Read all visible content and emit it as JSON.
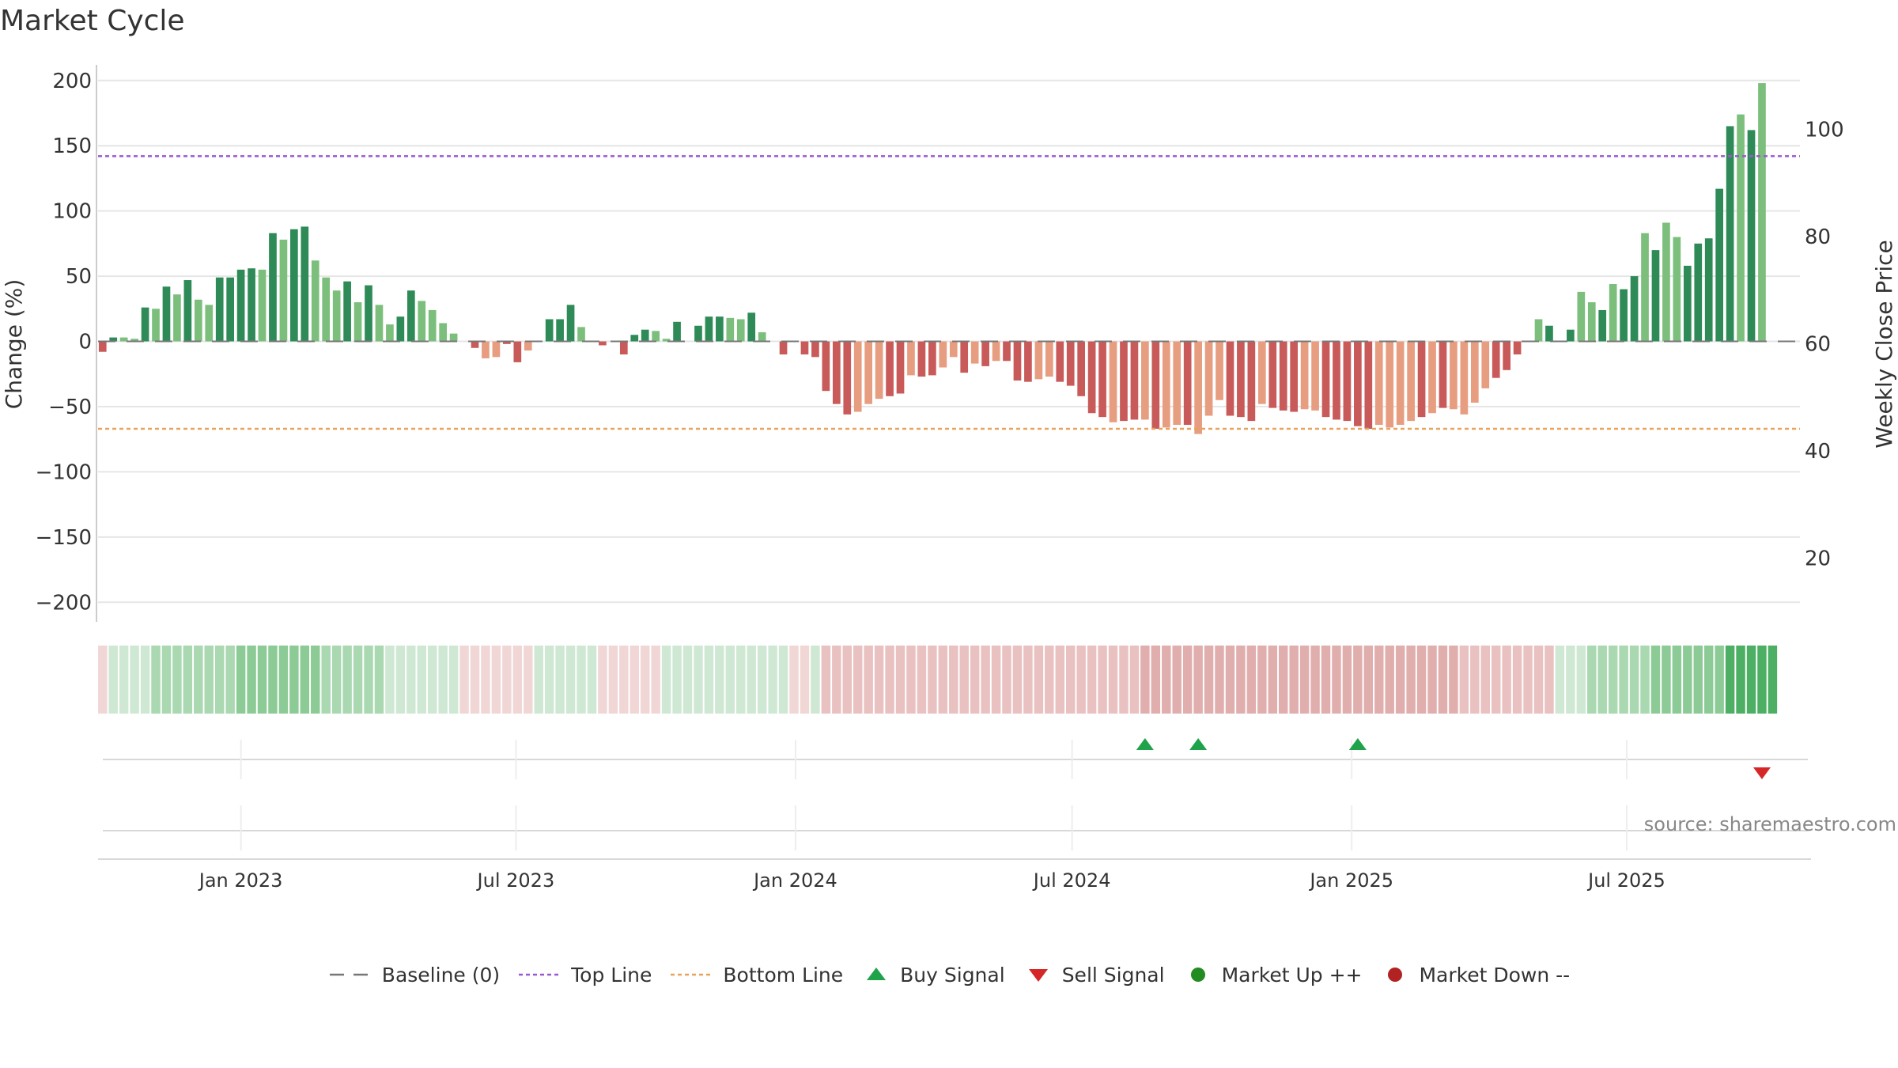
{
  "chart_data": {
    "type": "bar",
    "title": "Market Cycle",
    "ylabel": "Change (%)",
    "y2label": "Weekly Close Price",
    "ylim": [
      -215,
      212
    ],
    "y2lim": [
      8.1,
      112
    ],
    "yticks": [
      200,
      150,
      100,
      50,
      0,
      -50,
      -100,
      -150,
      -200
    ],
    "yticks_labels": [
      "200",
      "150",
      "100",
      "50",
      "0",
      "−50",
      "−100",
      "−150",
      "−200"
    ],
    "y2ticks": [
      100,
      80,
      60,
      40,
      20
    ],
    "xlim": [
      "2022-09-29",
      "2025-10-23"
    ],
    "xticks": [
      {
        "date": "2023-01-01",
        "label": "Jan 2023"
      },
      {
        "date": "2023-07-01",
        "label": "Jul 2023"
      },
      {
        "date": "2024-01-01",
        "label": "Jan 2024"
      },
      {
        "date": "2024-07-01",
        "label": "Jul 2024"
      },
      {
        "date": "2025-01-01",
        "label": "Jan 2025"
      },
      {
        "date": "2025-07-01",
        "label": "Jul 2025"
      }
    ],
    "start_date": "2022-10-02",
    "week_days": 7,
    "grid": true,
    "top_line": 142,
    "bottom_line": -67,
    "series": [
      {
        "name": "Change (%)",
        "values": [
          -8,
          3,
          3,
          2,
          26,
          25,
          42,
          36,
          47,
          32,
          28,
          49,
          49,
          55,
          56,
          55,
          83,
          78,
          86,
          88,
          62,
          49,
          39,
          46,
          30,
          43,
          28,
          13,
          19,
          39,
          31,
          24,
          14,
          6,
          0,
          -5,
          -13,
          -12,
          -2,
          -16,
          -7,
          0,
          17,
          17,
          28,
          11,
          0,
          -3,
          0,
          -10,
          5,
          9,
          8,
          2,
          15,
          0,
          12,
          19,
          19,
          18,
          17,
          22,
          7,
          0,
          -10,
          0,
          -10,
          -12,
          -38,
          -48,
          -56,
          -54,
          -48,
          -44,
          -42,
          -40,
          -26,
          -27,
          -26,
          -20,
          -12,
          -24,
          -17,
          -19,
          -15,
          -15,
          -30,
          -31,
          -29,
          -27,
          -31,
          -34,
          -42,
          -55,
          -58,
          -62,
          -61,
          -60,
          -60,
          -67,
          -66,
          -64,
          -64,
          -71,
          -57,
          -45,
          -57,
          -58,
          -61,
          -48,
          -51,
          -53,
          -54,
          -52,
          -53,
          -58,
          -60,
          -61,
          -65,
          -67,
          -64,
          -66,
          -64,
          -61,
          -58,
          -55,
          -51,
          -52,
          -56,
          -47,
          -36,
          -28,
          -22,
          -10,
          0,
          17,
          12,
          0,
          9,
          38,
          30,
          24,
          44,
          40,
          50,
          83,
          70,
          91,
          80,
          58,
          75,
          79,
          117,
          165,
          174,
          162,
          198
        ],
        "shade": [
          2,
          2,
          1,
          1,
          2,
          1,
          2,
          1,
          2,
          1,
          1,
          2,
          2,
          2,
          2,
          1,
          2,
          1,
          2,
          2,
          1,
          1,
          1,
          2,
          1,
          2,
          1,
          1,
          2,
          2,
          1,
          1,
          1,
          1,
          2,
          2,
          1,
          1,
          2,
          2,
          1,
          2,
          2,
          2,
          2,
          1,
          2,
          2,
          2,
          2,
          2,
          2,
          1,
          1,
          2,
          2,
          2,
          2,
          2,
          1,
          1,
          2,
          1,
          2,
          2,
          2,
          2,
          2,
          2,
          2,
          2,
          1,
          1,
          1,
          2,
          2,
          1,
          2,
          2,
          1,
          1,
          2,
          1,
          2,
          1,
          2,
          2,
          2,
          1,
          1,
          2,
          2,
          2,
          2,
          2,
          1,
          2,
          2,
          1,
          2,
          1,
          1,
          2,
          1,
          1,
          1,
          2,
          2,
          2,
          1,
          2,
          2,
          2,
          1,
          1,
          2,
          2,
          2,
          2,
          2,
          1,
          1,
          1,
          1,
          2,
          1,
          2,
          1,
          1,
          1,
          1,
          2,
          2,
          2,
          2,
          1,
          2,
          2,
          2,
          1,
          1,
          2,
          1,
          2,
          2,
          1,
          2,
          1,
          1,
          2,
          2,
          2,
          2,
          2,
          1,
          2
        ]
      }
    ],
    "heat_strip": [
      -1,
      1,
      1,
      1,
      1,
      2,
      2,
      2,
      2,
      2,
      2,
      2,
      2,
      3,
      3,
      3,
      3,
      3,
      3,
      3,
      3,
      2,
      2,
      2,
      2,
      2,
      2,
      1,
      1,
      1,
      1,
      1,
      1,
      1,
      -1,
      -1,
      -1,
      -1,
      -1,
      -1,
      -1,
      1,
      1,
      1,
      1,
      1,
      1,
      -1,
      -1,
      -1,
      -1,
      -1,
      -1,
      1,
      1,
      1,
      1,
      1,
      1,
      1,
      1,
      1,
      1,
      1,
      1,
      -1,
      -1,
      1,
      -2,
      -2,
      -2,
      -2,
      -2,
      -2,
      -2,
      -2,
      -2,
      -2,
      -2,
      -2,
      -2,
      -2,
      -2,
      -2,
      -2,
      -2,
      -2,
      -2,
      -2,
      -2,
      -2,
      -2,
      -2,
      -2,
      -2,
      -2,
      -2,
      -2,
      -3,
      -3,
      -3,
      -3,
      -3,
      -3,
      -3,
      -3,
      -3,
      -3,
      -3,
      -3,
      -3,
      -3,
      -3,
      -3,
      -3,
      -3,
      -3,
      -3,
      -3,
      -3,
      -3,
      -3,
      -3,
      -3,
      -3,
      -3,
      -3,
      -3,
      -2,
      -2,
      -2,
      -2,
      -2,
      -2,
      -2,
      -2,
      -2,
      1,
      1,
      1,
      2,
      2,
      2,
      2,
      2,
      2,
      3,
      3,
      3,
      3,
      3,
      3,
      3,
      4,
      4,
      4,
      4,
      4
    ],
    "buy_signals": [
      "2024-08-18",
      "2024-09-22",
      "2025-01-05"
    ],
    "sell_signals": [
      "2025-09-28"
    ],
    "source": "source: sharemaestro.com",
    "legend": [
      {
        "key": "baseline",
        "label": "Baseline (0)"
      },
      {
        "key": "top",
        "label": "Top Line"
      },
      {
        "key": "bottom",
        "label": "Bottom Line"
      },
      {
        "key": "buy",
        "label": "Buy Signal"
      },
      {
        "key": "sell",
        "label": "Sell Signal"
      },
      {
        "key": "up",
        "label": "Market Up ++"
      },
      {
        "key": "down",
        "label": "Market Down --"
      }
    ]
  },
  "colors": {
    "up_dark": "#2e8b57",
    "up_light": "#7cbf7c",
    "down_dark": "#c85a5a",
    "down_light": "#e79d80",
    "top_line": "#9b59d0",
    "bottom_line": "#e8a35a",
    "baseline": "#777777",
    "buy": "#1fa34a",
    "sell": "#d62728",
    "market_up": "#228b22",
    "market_down": "#b22222",
    "grid": "#e6e6e6",
    "text": "#333333",
    "source": "#888888"
  }
}
